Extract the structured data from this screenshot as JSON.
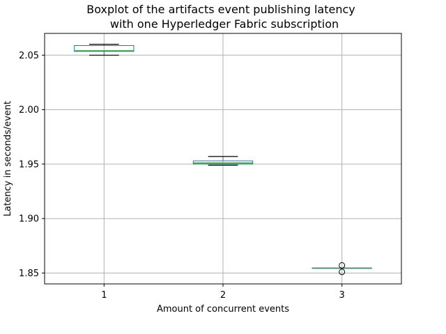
{
  "chart_data": {
    "type": "boxplot",
    "title_lines": [
      "Boxplot of the artifacts event publishing latency",
      "with one Hyperledger Fabric subscription"
    ],
    "xlabel": "Amount of concurrent events",
    "ylabel": "Latency in seconds/event",
    "categories": [
      "1",
      "2",
      "3"
    ],
    "y_ticks": [
      "1.85",
      "1.90",
      "1.95",
      "2.00",
      "2.05"
    ],
    "y_tick_values": [
      1.85,
      1.9,
      1.95,
      2.0,
      2.05
    ],
    "ylim": [
      1.84,
      2.07
    ],
    "xlim": [
      0.5,
      3.5
    ],
    "grid": true,
    "boxes": [
      {
        "category": "1",
        "whisker_low": 2.05,
        "q1": 2.0535,
        "median": 2.054,
        "q3": 2.0588,
        "whisker_high": 2.06,
        "outliers": []
      },
      {
        "category": "2",
        "whisker_low": 1.949,
        "q1": 1.95,
        "median": 1.951,
        "q3": 1.953,
        "whisker_high": 1.957,
        "outliers": []
      },
      {
        "category": "3",
        "whisker_low": 1.8545,
        "q1": 1.8545,
        "median": 1.8545,
        "q3": 1.8545,
        "whisker_high": 1.8545,
        "outliers": [
          1.857,
          1.851
        ]
      }
    ],
    "colors": {
      "box": "#1f77b4",
      "median": "#2ca02c",
      "whisker": "#000000",
      "grid": "#b0b0b0",
      "frame": "#000000"
    }
  }
}
